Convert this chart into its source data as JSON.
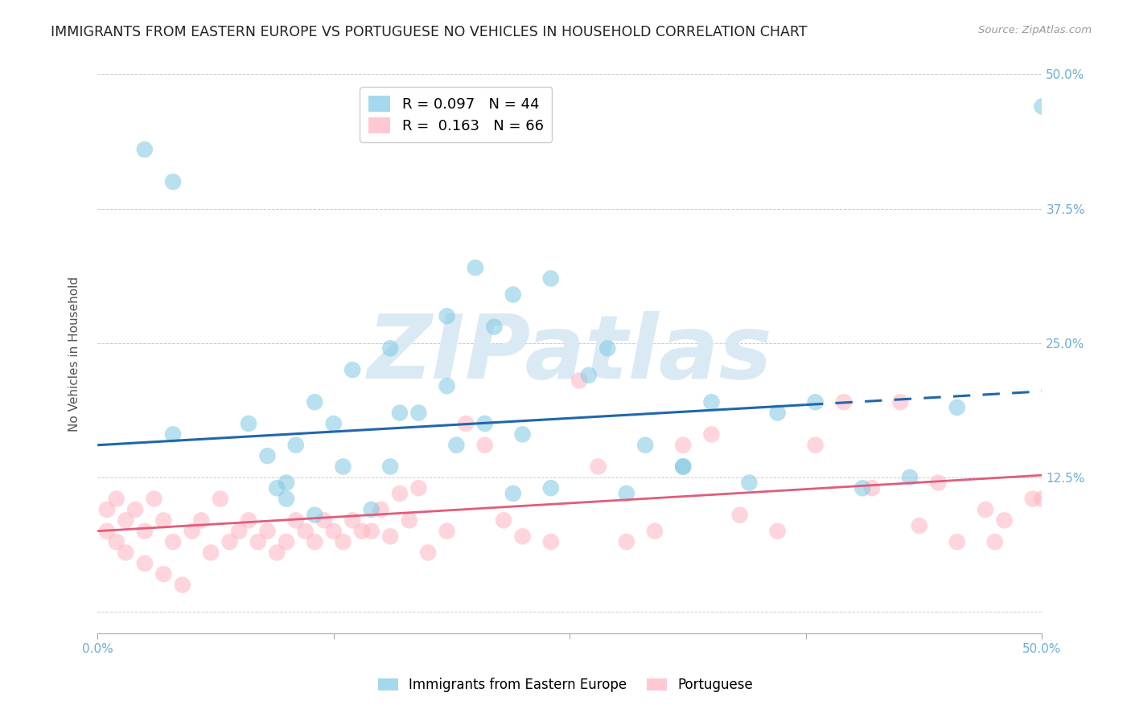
{
  "title": "IMMIGRANTS FROM EASTERN EUROPE VS PORTUGUESE NO VEHICLES IN HOUSEHOLD CORRELATION CHART",
  "source": "Source: ZipAtlas.com",
  "ylabel": "No Vehicles in Household",
  "xmin": 0.0,
  "xmax": 0.5,
  "ymin": -0.02,
  "ymax": 0.5,
  "yticks": [
    0.0,
    0.125,
    0.25,
    0.375,
    0.5
  ],
  "ytick_labels_right": [
    "",
    "12.5%",
    "25.0%",
    "37.5%",
    "50.0%"
  ],
  "xticks": [
    0.0,
    0.125,
    0.25,
    0.375,
    0.5
  ],
  "xtick_labels": [
    "0.0%",
    "",
    "",
    "",
    "50.0%"
  ],
  "blue_R": 0.097,
  "blue_N": 44,
  "pink_R": 0.163,
  "pink_N": 66,
  "blue_color": "#7ec8e3",
  "pink_color": "#ffb3c1",
  "blue_trend_color": "#2166ac",
  "pink_trend_color": "#e05c7a",
  "blue_label": "Immigrants from Eastern Europe",
  "pink_label": "Portuguese",
  "background_color": "#ffffff",
  "watermark": "ZIPatlas",
  "watermark_color": "#daeaf5",
  "title_fontsize": 12.5,
  "tick_fontsize": 11,
  "legend_fontsize": 13,
  "tick_color": "#6baed6",
  "blue_trend_y_start": 0.155,
  "blue_trend_y_end": 0.205,
  "blue_trend_solid_xend": 0.375,
  "pink_trend_y_start": 0.075,
  "pink_trend_y_end": 0.127,
  "blue_scatter_x": [
    0.025,
    0.04,
    0.095,
    0.105,
    0.115,
    0.125,
    0.135,
    0.155,
    0.17,
    0.185,
    0.185,
    0.2,
    0.21,
    0.22,
    0.225,
    0.24,
    0.27,
    0.29,
    0.31,
    0.325,
    0.36,
    0.43,
    0.455,
    0.04,
    0.08,
    0.09,
    0.1,
    0.1,
    0.115,
    0.13,
    0.145,
    0.155,
    0.16,
    0.19,
    0.205,
    0.22,
    0.24,
    0.26,
    0.28,
    0.31,
    0.345,
    0.38,
    0.405,
    0.5
  ],
  "blue_scatter_y": [
    0.43,
    0.4,
    0.115,
    0.155,
    0.195,
    0.175,
    0.225,
    0.245,
    0.185,
    0.275,
    0.21,
    0.32,
    0.265,
    0.295,
    0.165,
    0.31,
    0.245,
    0.155,
    0.135,
    0.195,
    0.185,
    0.125,
    0.19,
    0.165,
    0.175,
    0.145,
    0.12,
    0.105,
    0.09,
    0.135,
    0.095,
    0.135,
    0.185,
    0.155,
    0.175,
    0.11,
    0.115,
    0.22,
    0.11,
    0.135,
    0.12,
    0.195,
    0.115,
    0.47
  ],
  "pink_scatter_x": [
    0.005,
    0.01,
    0.015,
    0.02,
    0.025,
    0.03,
    0.035,
    0.04,
    0.05,
    0.055,
    0.06,
    0.065,
    0.07,
    0.075,
    0.08,
    0.085,
    0.09,
    0.095,
    0.1,
    0.105,
    0.11,
    0.115,
    0.12,
    0.125,
    0.13,
    0.135,
    0.14,
    0.145,
    0.15,
    0.155,
    0.16,
    0.165,
    0.17,
    0.175,
    0.185,
    0.195,
    0.205,
    0.215,
    0.225,
    0.24,
    0.255,
    0.265,
    0.28,
    0.295,
    0.31,
    0.325,
    0.34,
    0.36,
    0.38,
    0.395,
    0.41,
    0.425,
    0.435,
    0.445,
    0.455,
    0.47,
    0.475,
    0.48,
    0.495,
    0.5,
    0.005,
    0.01,
    0.015,
    0.025,
    0.035,
    0.045
  ],
  "pink_scatter_y": [
    0.095,
    0.105,
    0.085,
    0.095,
    0.075,
    0.105,
    0.085,
    0.065,
    0.075,
    0.085,
    0.055,
    0.105,
    0.065,
    0.075,
    0.085,
    0.065,
    0.075,
    0.055,
    0.065,
    0.085,
    0.075,
    0.065,
    0.085,
    0.075,
    0.065,
    0.085,
    0.075,
    0.075,
    0.095,
    0.07,
    0.11,
    0.085,
    0.115,
    0.055,
    0.075,
    0.175,
    0.155,
    0.085,
    0.07,
    0.065,
    0.215,
    0.135,
    0.065,
    0.075,
    0.155,
    0.165,
    0.09,
    0.075,
    0.155,
    0.195,
    0.115,
    0.195,
    0.08,
    0.12,
    0.065,
    0.095,
    0.065,
    0.085,
    0.105,
    0.105,
    0.075,
    0.065,
    0.055,
    0.045,
    0.035,
    0.025
  ]
}
